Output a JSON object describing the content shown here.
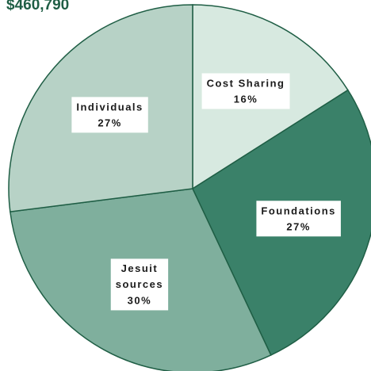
{
  "chart_data": {
    "type": "pie",
    "title": "$460,790",
    "categories": [
      "Cost Sharing",
      "Foundations",
      "Jesuit sources",
      "Individuals"
    ],
    "values": [
      16,
      27,
      30,
      27
    ],
    "value_labels": [
      "16%",
      "27%",
      "30%",
      "27%"
    ],
    "colors": [
      "#d7e9e0",
      "#3a8169",
      "#7faf9d",
      "#b7d2c6"
    ],
    "start_angle": 0,
    "direction": "clockwise"
  }
}
